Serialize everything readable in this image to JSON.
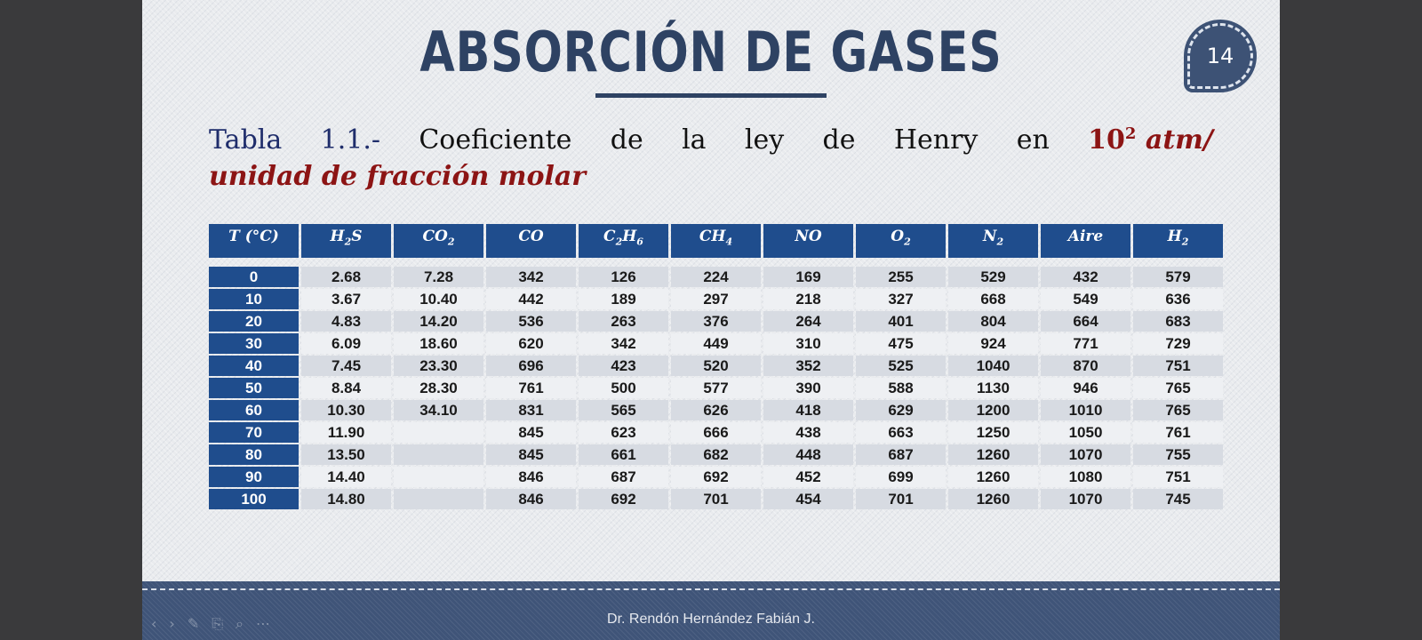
{
  "slide": {
    "title": "ABSORCIÓN DE GASES",
    "page_number": "14",
    "caption": {
      "label": "Tabla",
      "number": "1.1.-",
      "words": [
        "Coeficiente",
        "de",
        "la",
        "ley",
        "de",
        "Henry",
        "en"
      ],
      "unit_base": "10",
      "unit_exp": "2",
      "unit_tail": "atm/",
      "line2": "unidad de fracción molar"
    },
    "footer": "Dr. Rendón Hernández Fabián J.",
    "player_controls": [
      "‹",
      "›",
      "✎",
      "⎘",
      "⌕",
      "⋯"
    ]
  },
  "table": {
    "headers": [
      {
        "main": "T (°C)",
        "sub": ""
      },
      {
        "main": "H",
        "mid": "2",
        "tail": "S"
      },
      {
        "main": "CO",
        "sub": "2"
      },
      {
        "main": "CO",
        "sub": ""
      },
      {
        "main": "C",
        "mid": "2",
        "tail": "H",
        "sub": "6"
      },
      {
        "main": "CH",
        "sub": "4"
      },
      {
        "main": "NO",
        "sub": ""
      },
      {
        "main": "O",
        "sub": "2"
      },
      {
        "main": "N",
        "sub": "2"
      },
      {
        "main": "Aire",
        "sub": ""
      },
      {
        "main": "H",
        "sub": "2"
      }
    ],
    "rows": [
      [
        "0",
        "2.68",
        "7.28",
        "342",
        "126",
        "224",
        "169",
        "255",
        "529",
        "432",
        "579"
      ],
      [
        "10",
        "3.67",
        "10.40",
        "442",
        "189",
        "297",
        "218",
        "327",
        "668",
        "549",
        "636"
      ],
      [
        "20",
        "4.83",
        "14.20",
        "536",
        "263",
        "376",
        "264",
        "401",
        "804",
        "664",
        "683"
      ],
      [
        "30",
        "6.09",
        "18.60",
        "620",
        "342",
        "449",
        "310",
        "475",
        "924",
        "771",
        "729"
      ],
      [
        "40",
        "7.45",
        "23.30",
        "696",
        "423",
        "520",
        "352",
        "525",
        "1040",
        "870",
        "751"
      ],
      [
        "50",
        "8.84",
        "28.30",
        "761",
        "500",
        "577",
        "390",
        "588",
        "1130",
        "946",
        "765"
      ],
      [
        "60",
        "10.30",
        "34.10",
        "831",
        "565",
        "626",
        "418",
        "629",
        "1200",
        "1010",
        "765"
      ],
      [
        "70",
        "11.90",
        "",
        "845",
        "623",
        "666",
        "438",
        "663",
        "1250",
        "1050",
        "761"
      ],
      [
        "80",
        "13.50",
        "",
        "845",
        "661",
        "682",
        "448",
        "687",
        "1260",
        "1070",
        "755"
      ],
      [
        "90",
        "14.40",
        "",
        "846",
        "687",
        "692",
        "452",
        "699",
        "1260",
        "1080",
        "751"
      ],
      [
        "100",
        "14.80",
        "",
        "846",
        "692",
        "701",
        "454",
        "701",
        "1260",
        "1070",
        "745"
      ]
    ]
  }
}
